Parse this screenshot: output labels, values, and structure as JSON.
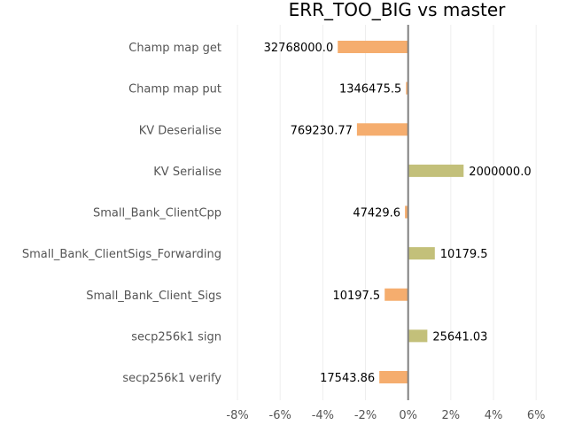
{
  "chart_data": {
    "type": "bar",
    "orientation": "horizontal",
    "title": "ERR_TOO_BIG vs master",
    "xlabel": "",
    "ylabel": "",
    "xlim": [
      -8.5,
      6.2
    ],
    "xticks": [
      -8,
      -6,
      -4,
      -2,
      0,
      2,
      4,
      6
    ],
    "xtick_labels": [
      "-8%",
      "-6%",
      "-4%",
      "-2%",
      "0%",
      "2%",
      "4%",
      "6%"
    ],
    "grid": true,
    "colors": {
      "negative": "#f5ad6e",
      "positive": "#c3c07a",
      "zero_line": "#808080"
    },
    "categories": [
      "Champ map get",
      "Champ map put",
      "KV Deserialise",
      "KV Serialise",
      "Small_Bank_ClientCpp",
      "Small_Bank_ClientSigs_Forwarding",
      "Small_Bank_Client_Sigs",
      "secp256k1 sign",
      "secp256k1 verify"
    ],
    "values": [
      -3.3,
      -0.1,
      -2.4,
      2.6,
      -0.15,
      1.25,
      -1.1,
      0.9,
      -1.35
    ],
    "data_labels": [
      "32768000.0",
      "1346475.5",
      "769230.77",
      "2000000.0",
      "47429.6",
      "10179.5",
      "10197.5",
      "25641.03",
      "17543.86"
    ]
  }
}
